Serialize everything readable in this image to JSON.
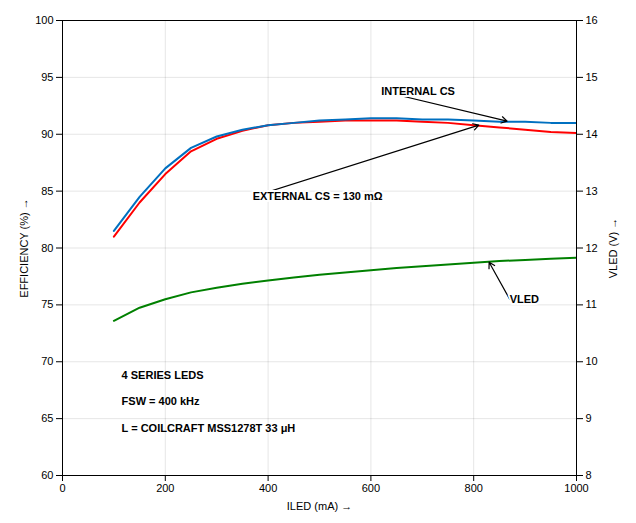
{
  "chart_data": {
    "type": "line",
    "xlabel": "ILED (mA)",
    "ylabel": "EFFICIENCY (%)",
    "y2label": "VLED (V)",
    "xlim": [
      0,
      1000
    ],
    "xticks": [
      0,
      200,
      400,
      600,
      800,
      1000
    ],
    "ylim": [
      60,
      100
    ],
    "yticks": [
      60,
      65,
      70,
      75,
      80,
      85,
      90,
      95,
      100
    ],
    "y2lim": [
      8,
      16
    ],
    "y2ticks": [
      8,
      9,
      10,
      11,
      12,
      13,
      14,
      15,
      16
    ],
    "grid": true,
    "x": [
      100,
      150,
      200,
      250,
      300,
      350,
      400,
      450,
      500,
      550,
      600,
      650,
      700,
      750,
      800,
      850,
      900,
      950,
      1000
    ],
    "series": [
      {
        "name": "INTERNAL CS",
        "color": "#0070C0",
        "values": [
          81.5,
          84.5,
          87.0,
          88.8,
          89.8,
          90.4,
          90.8,
          91.0,
          91.2,
          91.3,
          91.4,
          91.4,
          91.3,
          91.3,
          91.2,
          91.1,
          91.1,
          91.0,
          91.0
        ]
      },
      {
        "name": "EXTERNAL CS = 130 mΩ",
        "color": "#FF0000",
        "values": [
          81.0,
          84.0,
          86.5,
          88.5,
          89.6,
          90.3,
          90.8,
          91.0,
          91.1,
          91.2,
          91.2,
          91.2,
          91.1,
          91.0,
          90.8,
          90.6,
          90.4,
          90.2,
          90.1
        ]
      },
      {
        "name": "VLED",
        "color": "#008000",
        "axis": "y2",
        "values": [
          10.72,
          10.95,
          11.1,
          11.22,
          11.3,
          11.37,
          11.43,
          11.48,
          11.53,
          11.57,
          11.61,
          11.65,
          11.68,
          11.71,
          11.74,
          11.77,
          11.79,
          11.81,
          11.83
        ]
      }
    ],
    "annotations": [
      {
        "text": "INTERNAL CS",
        "xy": [
          865,
          91.15
        ],
        "xytext": [
          620,
          93.8
        ]
      },
      {
        "text": "EXTERNAL CS = 130 mΩ",
        "xy": [
          810,
          90.8
        ],
        "xytext": [
          370,
          84.5
        ]
      },
      {
        "text": "VLED",
        "xy": [
          830,
          78.75
        ],
        "xytext": [
          870,
          75.5
        ]
      },
      {
        "text": "4 SERIES LEDS",
        "xy": [
          115,
          68.5
        ]
      },
      {
        "text": "FSW = 400 kHz",
        "xy": [
          115,
          66.2
        ]
      },
      {
        "text": "L = COILCRAFT MSS1278T 33 μH",
        "xy": [
          115,
          63.8
        ]
      }
    ]
  }
}
